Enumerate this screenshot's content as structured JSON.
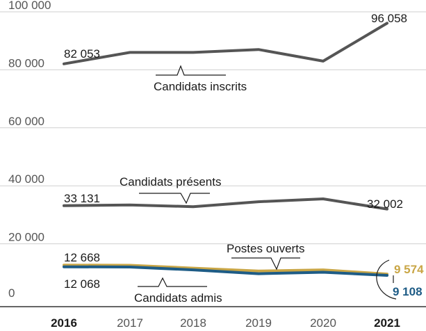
{
  "chart_data": {
    "type": "line",
    "x": [
      "2016",
      "2017",
      "2018",
      "2019",
      "2020",
      "2021"
    ],
    "x_bold": [
      "2016",
      "2021"
    ],
    "yticks": [
      0,
      20000,
      40000,
      60000,
      80000,
      100000
    ],
    "ytick_labels": [
      "0",
      "20 000",
      "40 000",
      "60 000",
      "80 000",
      "100 000"
    ],
    "ylim": [
      0,
      100000
    ],
    "grid": true,
    "colors": {
      "grid": "#cfcfcf",
      "axis": "#333333"
    },
    "series": [
      {
        "name": "Candidats inscrits",
        "color": "#555555",
        "values": [
          82053,
          86000,
          86000,
          87000,
          83000,
          96058
        ]
      },
      {
        "name": "Candidats présents",
        "color": "#555555",
        "values": [
          33131,
          33400,
          32800,
          34500,
          35500,
          32002
        ]
      },
      {
        "name": "Postes ouverts",
        "color": "#c9a646",
        "values": [
          12668,
          12600,
          11600,
          10600,
          11000,
          9574
        ]
      },
      {
        "name": "Candidats admis",
        "color": "#1e5c86",
        "values": [
          12068,
          12000,
          11000,
          9700,
          10200,
          9108
        ]
      }
    ],
    "value_labels": {
      "inscrits_first": "82 053",
      "inscrits_last": "96 058",
      "presents_first": "33 131",
      "presents_last": "32 002",
      "postes_first": "12 668",
      "postes_last": "9 574",
      "admis_first": "12 068",
      "admis_last": "9 108"
    }
  }
}
